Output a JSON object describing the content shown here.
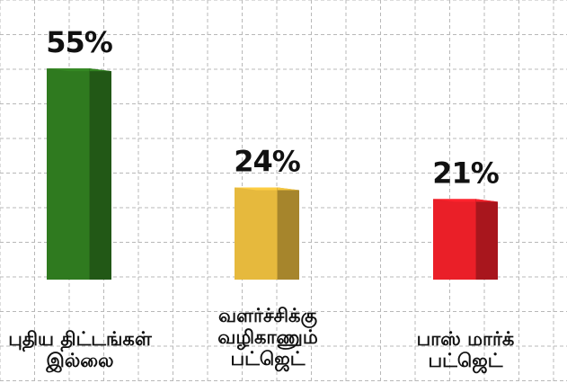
{
  "chart_data": {
    "type": "bar",
    "categories": [
      "புதிய திட்டங்கள்\nஇல்லை",
      "வளர்ச்சிக்கு\nவழிகாணும்\nபட்ஜெட்",
      "பாஸ் மார்க்\nபட்ஜெட்"
    ],
    "values": [
      55,
      24,
      21
    ],
    "data_labels": [
      "55%",
      "24%",
      "21%"
    ],
    "colors": [
      "#2f7a1f",
      "#e6b93d",
      "#ea1f28"
    ],
    "grid": true,
    "title": "",
    "xlabel": "",
    "ylabel": ""
  }
}
